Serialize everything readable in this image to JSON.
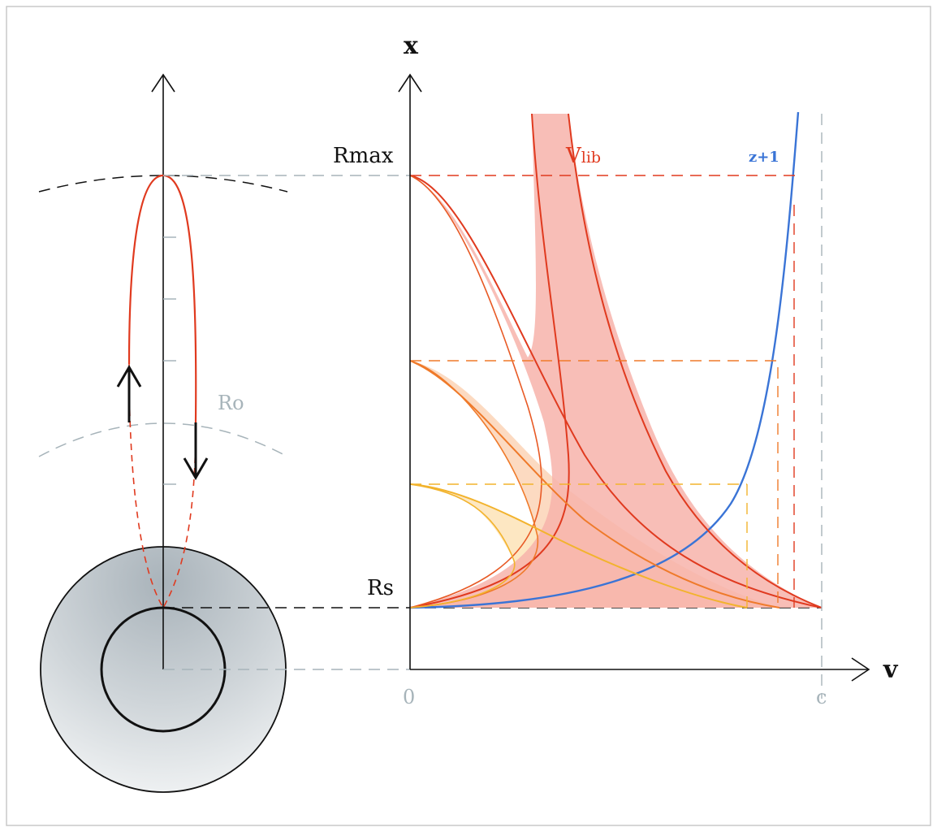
{
  "labels": {
    "x_axis": "x",
    "v_axis": "v",
    "rmax": "Rmax",
    "rs": "Rs",
    "ro": "Ro",
    "origin": "0",
    "c": "c",
    "vlib_main": "V",
    "vlib_sub": "lib",
    "z_plus_1": "z+1"
  },
  "colors": {
    "red": "#e03a1f",
    "orange": "#ef7a2a",
    "yellow": "#f2b32d",
    "blue": "#3a74d6",
    "grey": "#a7b4ba",
    "black": "#111111",
    "red_fill": "#f7b3aa",
    "orange_fill": "#fbd3b6",
    "yellow_fill": "#fde7c2"
  },
  "icons": {
    "up_arrow": "up-arrow-icon",
    "down_arrow": "down-arrow-icon"
  }
}
